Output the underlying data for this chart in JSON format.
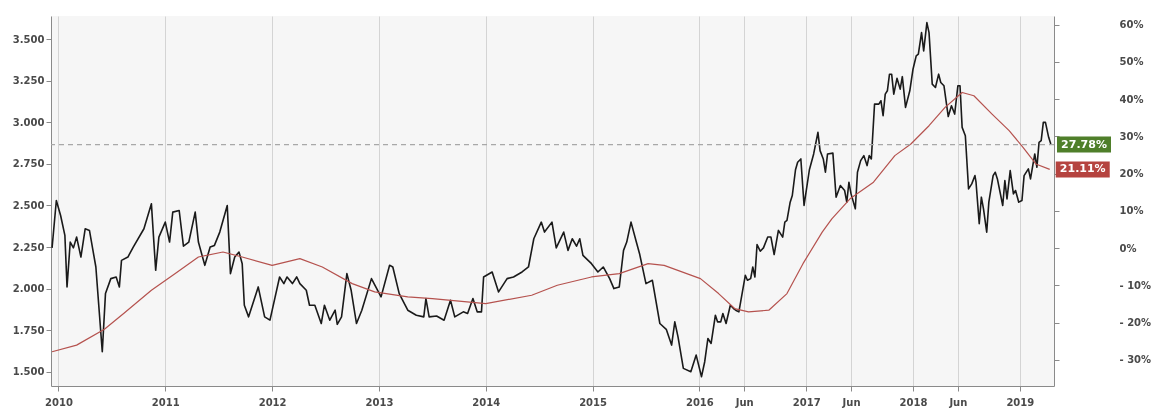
{
  "chart_data": {
    "type": "line",
    "xlim": [
      2009.93,
      2019.32
    ],
    "xticks": [
      2010,
      2011,
      2012,
      2013,
      2014,
      2015,
      2016,
      {
        "value": 2016.42,
        "label": "Jun"
      },
      2017,
      {
        "value": 2017.42,
        "label": "Jun"
      },
      2018,
      {
        "value": 2018.42,
        "label": "Jun"
      },
      2019
    ],
    "ylim": [
      1.414,
      3.64
    ],
    "yticks": [
      {
        "value": 1.5,
        "label": "1.500"
      },
      {
        "value": 1.75,
        "label": "1.750"
      },
      {
        "value": 2,
        "label": "2.000"
      },
      {
        "value": 2.25,
        "label": "2.250"
      },
      {
        "value": 2.5,
        "label": "2.500"
      },
      {
        "value": 2.75,
        "label": "2.750"
      },
      {
        "value": 3,
        "label": "3.000"
      },
      {
        "value": 3.25,
        "label": "3.250"
      },
      {
        "value": 3.5,
        "label": "3.500"
      }
    ],
    "y2lim": [
      -37,
      62.3
    ],
    "y2ticks": [
      {
        "value": -30,
        "label": "- 30%"
      },
      {
        "value": -20,
        "label": "- 20%"
      },
      {
        "value": -10,
        "label": "- 10%"
      },
      {
        "value": 0,
        "label": "0%"
      },
      {
        "value": 10,
        "label": "10%"
      },
      {
        "value": 20,
        "label": "20%"
      },
      {
        "value": 30,
        "label": "30%"
      },
      {
        "value": 40,
        "label": "40%"
      },
      {
        "value": 50,
        "label": "50%"
      },
      {
        "value": 60,
        "label": "60%"
      }
    ],
    "grid": "x",
    "line_style": "solid",
    "series": [
      {
        "color": "#1a1a1a",
        "x": [
          2009.94,
          2009.98,
          2010.02,
          2010.06,
          2010.08,
          2010.11,
          2010.14,
          2010.17,
          2010.21,
          2010.25,
          2010.29,
          2010.35,
          2010.41,
          2010.44,
          2010.49,
          2010.54,
          2010.57,
          2010.59,
          2010.65,
          2010.7,
          2010.8,
          2010.87,
          2010.91,
          2010.94,
          2011.0,
          2011.04,
          2011.07,
          2011.13,
          2011.17,
          2011.22,
          2011.28,
          2011.31,
          2011.37,
          2011.42,
          2011.46,
          2011.51,
          2011.58,
          2011.61,
          2011.65,
          2011.69,
          2011.72,
          2011.74,
          2011.78,
          2011.87,
          2011.93,
          2011.98,
          2012.07,
          2012.11,
          2012.14,
          2012.19,
          2012.23,
          2012.26,
          2012.32,
          2012.35,
          2012.4,
          2012.46,
          2012.49,
          2012.54,
          2012.59,
          2012.61,
          2012.65,
          2012.7,
          2012.74,
          2012.79,
          2012.84,
          2012.93,
          2013.02,
          2013.1,
          2013.13,
          2013.19,
          2013.27,
          2013.35,
          2013.42,
          2013.44,
          2013.47,
          2013.54,
          2013.61,
          2013.67,
          2013.71,
          2013.79,
          2013.83,
          2013.88,
          2013.92,
          2013.96,
          2013.98,
          2014.06,
          2014.12,
          2014.2,
          2014.26,
          2014.34,
          2014.4,
          2014.45,
          2014.52,
          2014.55,
          2014.62,
          2014.66,
          2014.73,
          2014.77,
          2014.81,
          2014.85,
          2014.88,
          2014.91,
          2014.99,
          2015.05,
          2015.1,
          2015.16,
          2015.2,
          2015.25,
          2015.29,
          2015.32,
          2015.36,
          2015.41,
          2015.44,
          2015.5,
          2015.56,
          2015.63,
          2015.69,
          2015.74,
          2015.77,
          2015.8,
          2015.85,
          2015.92,
          2015.97,
          2016.02,
          2016.05,
          2016.08,
          2016.11,
          2016.15,
          2016.17,
          2016.2,
          2016.22,
          2016.25,
          2016.29,
          2016.32,
          2016.34,
          2016.37,
          2016.43,
          2016.45,
          2016.48,
          2016.5,
          2016.52,
          2016.54,
          2016.57,
          2016.6,
          2016.64,
          2016.67,
          2016.7,
          2016.74,
          2016.78,
          2016.8,
          2016.82,
          2016.85,
          2016.87,
          2016.9,
          2016.92,
          2016.95,
          2016.98,
          2017.03,
          2017.07,
          2017.11,
          2017.13,
          2017.16,
          2017.18,
          2017.2,
          2017.25,
          2017.28,
          2017.32,
          2017.36,
          2017.38,
          2017.4,
          2017.42,
          2017.46,
          2017.48,
          2017.51,
          2017.54,
          2017.57,
          2017.59,
          2017.61,
          2017.64,
          2017.68,
          2017.7,
          2017.72,
          2017.74,
          2017.76,
          2017.78,
          2017.8,
          2017.82,
          2017.85,
          2017.88,
          2017.9,
          2017.93,
          2017.97,
          2018.0,
          2018.03,
          2018.05,
          2018.08,
          2018.1,
          2018.13,
          2018.15,
          2018.18,
          2018.21,
          2018.24,
          2018.26,
          2018.29,
          2018.33,
          2018.36,
          2018.39,
          2018.42,
          2018.44,
          2018.46,
          2018.49,
          2018.52,
          2018.55,
          2018.58,
          2018.59,
          2018.62,
          2018.64,
          2018.66,
          2018.69,
          2018.71,
          2018.75,
          2018.77,
          2018.79,
          2018.84,
          2018.86,
          2018.88,
          2018.91,
          2018.94,
          2018.96,
          2018.99,
          2019.02,
          2019.04,
          2019.08,
          2019.1,
          2019.14,
          2019.16,
          2019.18,
          2019.2,
          2019.22,
          2019.24,
          2019.27,
          2019.29
        ],
        "values": [
          2.245,
          2.53,
          2.44,
          2.32,
          2.01,
          2.28,
          2.245,
          2.31,
          2.19,
          2.36,
          2.35,
          2.13,
          1.62,
          1.97,
          2.06,
          2.07,
          2.01,
          2.17,
          2.19,
          2.25,
          2.36,
          2.51,
          2.11,
          2.31,
          2.4,
          2.28,
          2.46,
          2.47,
          2.255,
          2.28,
          2.46,
          2.28,
          2.14,
          2.25,
          2.26,
          2.34,
          2.5,
          2.09,
          2.19,
          2.22,
          2.15,
          1.9,
          1.83,
          2.01,
          1.83,
          1.81,
          2.07,
          2.03,
          2.07,
          2.03,
          2.07,
          2.03,
          1.99,
          1.9,
          1.9,
          1.79,
          1.9,
          1.81,
          1.87,
          1.785,
          1.83,
          2.09,
          1.99,
          1.79,
          1.87,
          2.06,
          1.95,
          2.14,
          2.13,
          1.97,
          1.87,
          1.84,
          1.83,
          1.94,
          1.83,
          1.835,
          1.81,
          1.93,
          1.83,
          1.86,
          1.85,
          1.94,
          1.86,
          1.86,
          2.07,
          2.1,
          1.98,
          2.06,
          2.07,
          2.1,
          2.13,
          2.3,
          2.4,
          2.34,
          2.4,
          2.245,
          2.34,
          2.23,
          2.3,
          2.255,
          2.3,
          2.2,
          2.15,
          2.1,
          2.13,
          2.06,
          2.0,
          2.01,
          2.23,
          2.28,
          2.4,
          2.28,
          2.21,
          2.03,
          2.05,
          1.79,
          1.755,
          1.66,
          1.8,
          1.71,
          1.52,
          1.5,
          1.6,
          1.47,
          1.56,
          1.7,
          1.67,
          1.84,
          1.8,
          1.8,
          1.85,
          1.79,
          1.9,
          1.88,
          1.87,
          1.86,
          2.08,
          2.05,
          2.06,
          2.13,
          2.07,
          2.265,
          2.225,
          2.245,
          2.31,
          2.31,
          2.205,
          2.35,
          2.31,
          2.4,
          2.41,
          2.52,
          2.56,
          2.715,
          2.76,
          2.78,
          2.5,
          2.715,
          2.81,
          2.94,
          2.83,
          2.78,
          2.7,
          2.81,
          2.815,
          2.55,
          2.62,
          2.59,
          2.52,
          2.64,
          2.57,
          2.48,
          2.7,
          2.77,
          2.8,
          2.74,
          2.8,
          2.78,
          3.11,
          3.11,
          3.13,
          3.04,
          3.17,
          3.19,
          3.29,
          3.29,
          3.17,
          3.265,
          3.2,
          3.275,
          3.09,
          3.19,
          3.32,
          3.4,
          3.41,
          3.54,
          3.43,
          3.6,
          3.54,
          3.23,
          3.21,
          3.29,
          3.24,
          3.22,
          3.035,
          3.1,
          3.05,
          3.22,
          3.22,
          2.97,
          2.92,
          2.6,
          2.63,
          2.68,
          2.64,
          2.39,
          2.55,
          2.48,
          2.34,
          2.52,
          2.68,
          2.7,
          2.66,
          2.5,
          2.65,
          2.54,
          2.71,
          2.57,
          2.59,
          2.52,
          2.53,
          2.68,
          2.72,
          2.66,
          2.81,
          2.73,
          2.88,
          2.89,
          3.0,
          3.0,
          2.91,
          2.87
        ]
      },
      {
        "color": "#b5524e",
        "x": [
          2009.94,
          2010.17,
          2010.43,
          2010.61,
          2010.87,
          2011.09,
          2011.31,
          2011.54,
          2011.72,
          2012.0,
          2012.26,
          2012.47,
          2012.75,
          2012.96,
          2013.27,
          2013.5,
          2014.0,
          2014.43,
          2014.67,
          2014.99,
          2015.25,
          2015.52,
          2015.67,
          2016.01,
          2016.18,
          2016.33,
          2016.46,
          2016.65,
          2016.82,
          2016.97,
          2017.15,
          2017.24,
          2017.41,
          2017.63,
          2017.83,
          2017.98,
          2018.15,
          2018.3,
          2018.46,
          2018.57,
          2018.74,
          2018.9,
          2019.03,
          2019.15,
          2019.28
        ],
        "values": [
          1.62,
          1.66,
          1.755,
          1.85,
          1.99,
          2.09,
          2.19,
          2.22,
          2.19,
          2.14,
          2.18,
          2.13,
          2.03,
          1.98,
          1.95,
          1.94,
          1.91,
          1.96,
          2.02,
          2.07,
          2.09,
          2.15,
          2.14,
          2.06,
          1.97,
          1.88,
          1.86,
          1.87,
          1.97,
          2.15,
          2.34,
          2.42,
          2.54,
          2.64,
          2.8,
          2.87,
          2.98,
          3.09,
          3.18,
          3.16,
          3.05,
          2.95,
          2.85,
          2.75,
          2.717
        ]
      }
    ],
    "ref_lines": [
      {
        "axis": "y2",
        "value": 27.78,
        "label": "27.78%",
        "line_style": "dashed"
      }
    ],
    "annotations": [
      {
        "text": "21.11%",
        "x": 2019.28,
        "y": 2.717
      }
    ]
  }
}
